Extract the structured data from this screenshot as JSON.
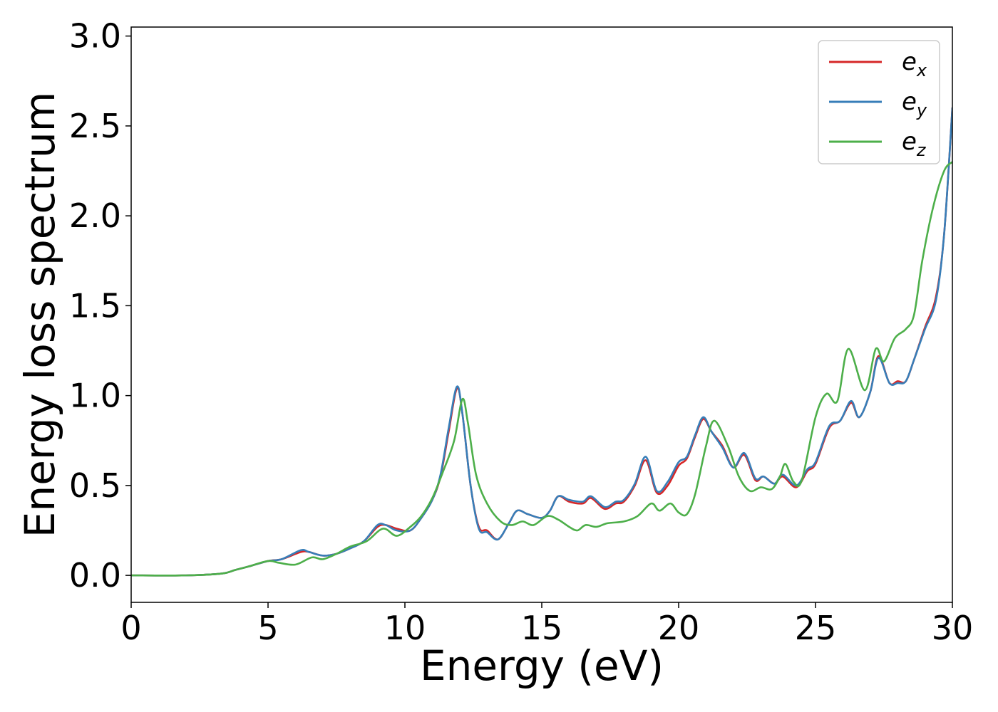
{
  "chart_data": {
    "type": "line",
    "title": "",
    "xlabel": "Energy (eV)",
    "ylabel": "Energy loss spectrum",
    "xlim": [
      0,
      30
    ],
    "ylim": [
      -0.15,
      3.05
    ],
    "xticks": [
      0,
      5,
      10,
      15,
      20,
      25,
      30
    ],
    "xtick_labels": [
      "0",
      "5",
      "10",
      "15",
      "20",
      "25",
      "30"
    ],
    "yticks": [
      0.0,
      0.5,
      1.0,
      1.5,
      2.0,
      2.5,
      3.0
    ],
    "ytick_labels": [
      "0.0",
      "0.5",
      "1.0",
      "1.5",
      "2.0",
      "2.5",
      "3.0"
    ],
    "grid": false,
    "legend_position": "top-right",
    "series": [
      {
        "name": "e",
        "subscript": "x",
        "color": "#d62728",
        "points": [
          [
            0,
            0
          ],
          [
            2,
            0
          ],
          [
            3.3,
            0.01
          ],
          [
            3.8,
            0.03
          ],
          [
            4.3,
            0.05
          ],
          [
            5,
            0.08
          ],
          [
            5.5,
            0.09
          ],
          [
            6.2,
            0.13
          ],
          [
            6.5,
            0.13
          ],
          [
            7,
            0.11
          ],
          [
            7.5,
            0.12
          ],
          [
            8,
            0.15
          ],
          [
            8.5,
            0.19
          ],
          [
            9,
            0.27
          ],
          [
            9.3,
            0.28
          ],
          [
            9.7,
            0.26
          ],
          [
            10.2,
            0.25
          ],
          [
            10.6,
            0.32
          ],
          [
            11,
            0.42
          ],
          [
            11.3,
            0.55
          ],
          [
            11.6,
            0.8
          ],
          [
            11.9,
            1.04
          ],
          [
            12.1,
            0.9
          ],
          [
            12.4,
            0.5
          ],
          [
            12.7,
            0.27
          ],
          [
            13,
            0.25
          ],
          [
            13.4,
            0.2
          ],
          [
            13.8,
            0.29
          ],
          [
            14.1,
            0.36
          ],
          [
            14.5,
            0.34
          ],
          [
            15,
            0.32
          ],
          [
            15.3,
            0.36
          ],
          [
            15.6,
            0.44
          ],
          [
            16.0,
            0.41
          ],
          [
            16.5,
            0.4
          ],
          [
            16.8,
            0.43
          ],
          [
            17.3,
            0.37
          ],
          [
            17.7,
            0.4
          ],
          [
            18,
            0.41
          ],
          [
            18.4,
            0.5
          ],
          [
            18.8,
            0.64
          ],
          [
            19.2,
            0.46
          ],
          [
            19.6,
            0.5
          ],
          [
            20.0,
            0.61
          ],
          [
            20.3,
            0.65
          ],
          [
            20.6,
            0.77
          ],
          [
            20.9,
            0.87
          ],
          [
            21.2,
            0.8
          ],
          [
            21.6,
            0.72
          ],
          [
            22.0,
            0.6
          ],
          [
            22.4,
            0.67
          ],
          [
            22.8,
            0.53
          ],
          [
            23.1,
            0.55
          ],
          [
            23.5,
            0.51
          ],
          [
            23.8,
            0.55
          ],
          [
            24.3,
            0.49
          ],
          [
            24.7,
            0.58
          ],
          [
            25.0,
            0.62
          ],
          [
            25.5,
            0.82
          ],
          [
            25.9,
            0.86
          ],
          [
            26.3,
            0.96
          ],
          [
            26.6,
            0.88
          ],
          [
            27.0,
            1.02
          ],
          [
            27.3,
            1.22
          ],
          [
            27.7,
            1.07
          ],
          [
            28.0,
            1.08
          ],
          [
            28.3,
            1.08
          ],
          [
            28.6,
            1.2
          ],
          [
            29.0,
            1.38
          ],
          [
            29.4,
            1.55
          ],
          [
            29.7,
            1.9
          ],
          [
            30,
            2.6
          ]
        ]
      },
      {
        "name": "e",
        "subscript": "y",
        "color": "#377eb8",
        "points": [
          [
            0,
            0
          ],
          [
            2,
            0
          ],
          [
            3.3,
            0.01
          ],
          [
            3.8,
            0.03
          ],
          [
            4.3,
            0.05
          ],
          [
            5,
            0.08
          ],
          [
            5.5,
            0.09
          ],
          [
            6.2,
            0.14
          ],
          [
            6.5,
            0.13
          ],
          [
            7,
            0.11
          ],
          [
            7.5,
            0.12
          ],
          [
            8,
            0.15
          ],
          [
            8.5,
            0.19
          ],
          [
            9,
            0.28
          ],
          [
            9.3,
            0.28
          ],
          [
            9.7,
            0.25
          ],
          [
            10.2,
            0.25
          ],
          [
            10.6,
            0.32
          ],
          [
            11,
            0.42
          ],
          [
            11.3,
            0.56
          ],
          [
            11.6,
            0.82
          ],
          [
            11.9,
            1.05
          ],
          [
            12.1,
            0.9
          ],
          [
            12.4,
            0.5
          ],
          [
            12.7,
            0.26
          ],
          [
            13,
            0.24
          ],
          [
            13.4,
            0.2
          ],
          [
            13.8,
            0.29
          ],
          [
            14.1,
            0.36
          ],
          [
            14.5,
            0.34
          ],
          [
            15,
            0.32
          ],
          [
            15.3,
            0.36
          ],
          [
            15.6,
            0.44
          ],
          [
            16.0,
            0.42
          ],
          [
            16.5,
            0.41
          ],
          [
            16.8,
            0.44
          ],
          [
            17.3,
            0.38
          ],
          [
            17.7,
            0.41
          ],
          [
            18,
            0.42
          ],
          [
            18.4,
            0.51
          ],
          [
            18.8,
            0.66
          ],
          [
            19.2,
            0.47
          ],
          [
            19.6,
            0.52
          ],
          [
            20.0,
            0.63
          ],
          [
            20.3,
            0.66
          ],
          [
            20.6,
            0.78
          ],
          [
            20.9,
            0.88
          ],
          [
            21.2,
            0.8
          ],
          [
            21.6,
            0.71
          ],
          [
            22.0,
            0.6
          ],
          [
            22.4,
            0.68
          ],
          [
            22.8,
            0.54
          ],
          [
            23.1,
            0.55
          ],
          [
            23.5,
            0.51
          ],
          [
            23.8,
            0.56
          ],
          [
            24.3,
            0.5
          ],
          [
            24.7,
            0.59
          ],
          [
            25.0,
            0.63
          ],
          [
            25.5,
            0.83
          ],
          [
            25.9,
            0.86
          ],
          [
            26.3,
            0.97
          ],
          [
            26.6,
            0.88
          ],
          [
            27.0,
            1.02
          ],
          [
            27.3,
            1.21
          ],
          [
            27.7,
            1.07
          ],
          [
            28.0,
            1.07
          ],
          [
            28.3,
            1.08
          ],
          [
            28.6,
            1.2
          ],
          [
            29.0,
            1.37
          ],
          [
            29.4,
            1.53
          ],
          [
            29.7,
            1.9
          ],
          [
            30,
            2.6
          ]
        ]
      },
      {
        "name": "e",
        "subscript": "z",
        "color": "#4daf4a",
        "points": [
          [
            0,
            0
          ],
          [
            2,
            0
          ],
          [
            3.3,
            0.01
          ],
          [
            3.8,
            0.03
          ],
          [
            4.3,
            0.05
          ],
          [
            5,
            0.08
          ],
          [
            5.4,
            0.07
          ],
          [
            6,
            0.06
          ],
          [
            6.6,
            0.1
          ],
          [
            7,
            0.09
          ],
          [
            7.5,
            0.12
          ],
          [
            8,
            0.16
          ],
          [
            8.6,
            0.19
          ],
          [
            9.2,
            0.26
          ],
          [
            9.7,
            0.22
          ],
          [
            10.2,
            0.27
          ],
          [
            10.6,
            0.33
          ],
          [
            11,
            0.43
          ],
          [
            11.4,
            0.58
          ],
          [
            11.8,
            0.75
          ],
          [
            12.1,
            0.98
          ],
          [
            12.3,
            0.85
          ],
          [
            12.6,
            0.56
          ],
          [
            13,
            0.4
          ],
          [
            13.5,
            0.3
          ],
          [
            13.9,
            0.28
          ],
          [
            14.3,
            0.3
          ],
          [
            14.7,
            0.28
          ],
          [
            15.2,
            0.33
          ],
          [
            15.6,
            0.31
          ],
          [
            16,
            0.27
          ],
          [
            16.3,
            0.25
          ],
          [
            16.6,
            0.28
          ],
          [
            17,
            0.27
          ],
          [
            17.4,
            0.29
          ],
          [
            18,
            0.3
          ],
          [
            18.5,
            0.33
          ],
          [
            19,
            0.4
          ],
          [
            19.3,
            0.36
          ],
          [
            19.7,
            0.4
          ],
          [
            20,
            0.35
          ],
          [
            20.3,
            0.34
          ],
          [
            20.6,
            0.45
          ],
          [
            21,
            0.72
          ],
          [
            21.3,
            0.86
          ],
          [
            21.8,
            0.72
          ],
          [
            22.2,
            0.55
          ],
          [
            22.6,
            0.47
          ],
          [
            23,
            0.49
          ],
          [
            23.4,
            0.48
          ],
          [
            23.7,
            0.55
          ],
          [
            23.9,
            0.62
          ],
          [
            24.2,
            0.52
          ],
          [
            24.5,
            0.53
          ],
          [
            25,
            0.88
          ],
          [
            25.4,
            1.01
          ],
          [
            25.8,
            0.97
          ],
          [
            26.2,
            1.26
          ],
          [
            26.8,
            1.03
          ],
          [
            27.2,
            1.26
          ],
          [
            27.5,
            1.19
          ],
          [
            27.9,
            1.32
          ],
          [
            28.3,
            1.37
          ],
          [
            28.6,
            1.45
          ],
          [
            28.9,
            1.75
          ],
          [
            29.3,
            2.05
          ],
          [
            29.7,
            2.25
          ],
          [
            30,
            2.3
          ]
        ]
      }
    ]
  }
}
